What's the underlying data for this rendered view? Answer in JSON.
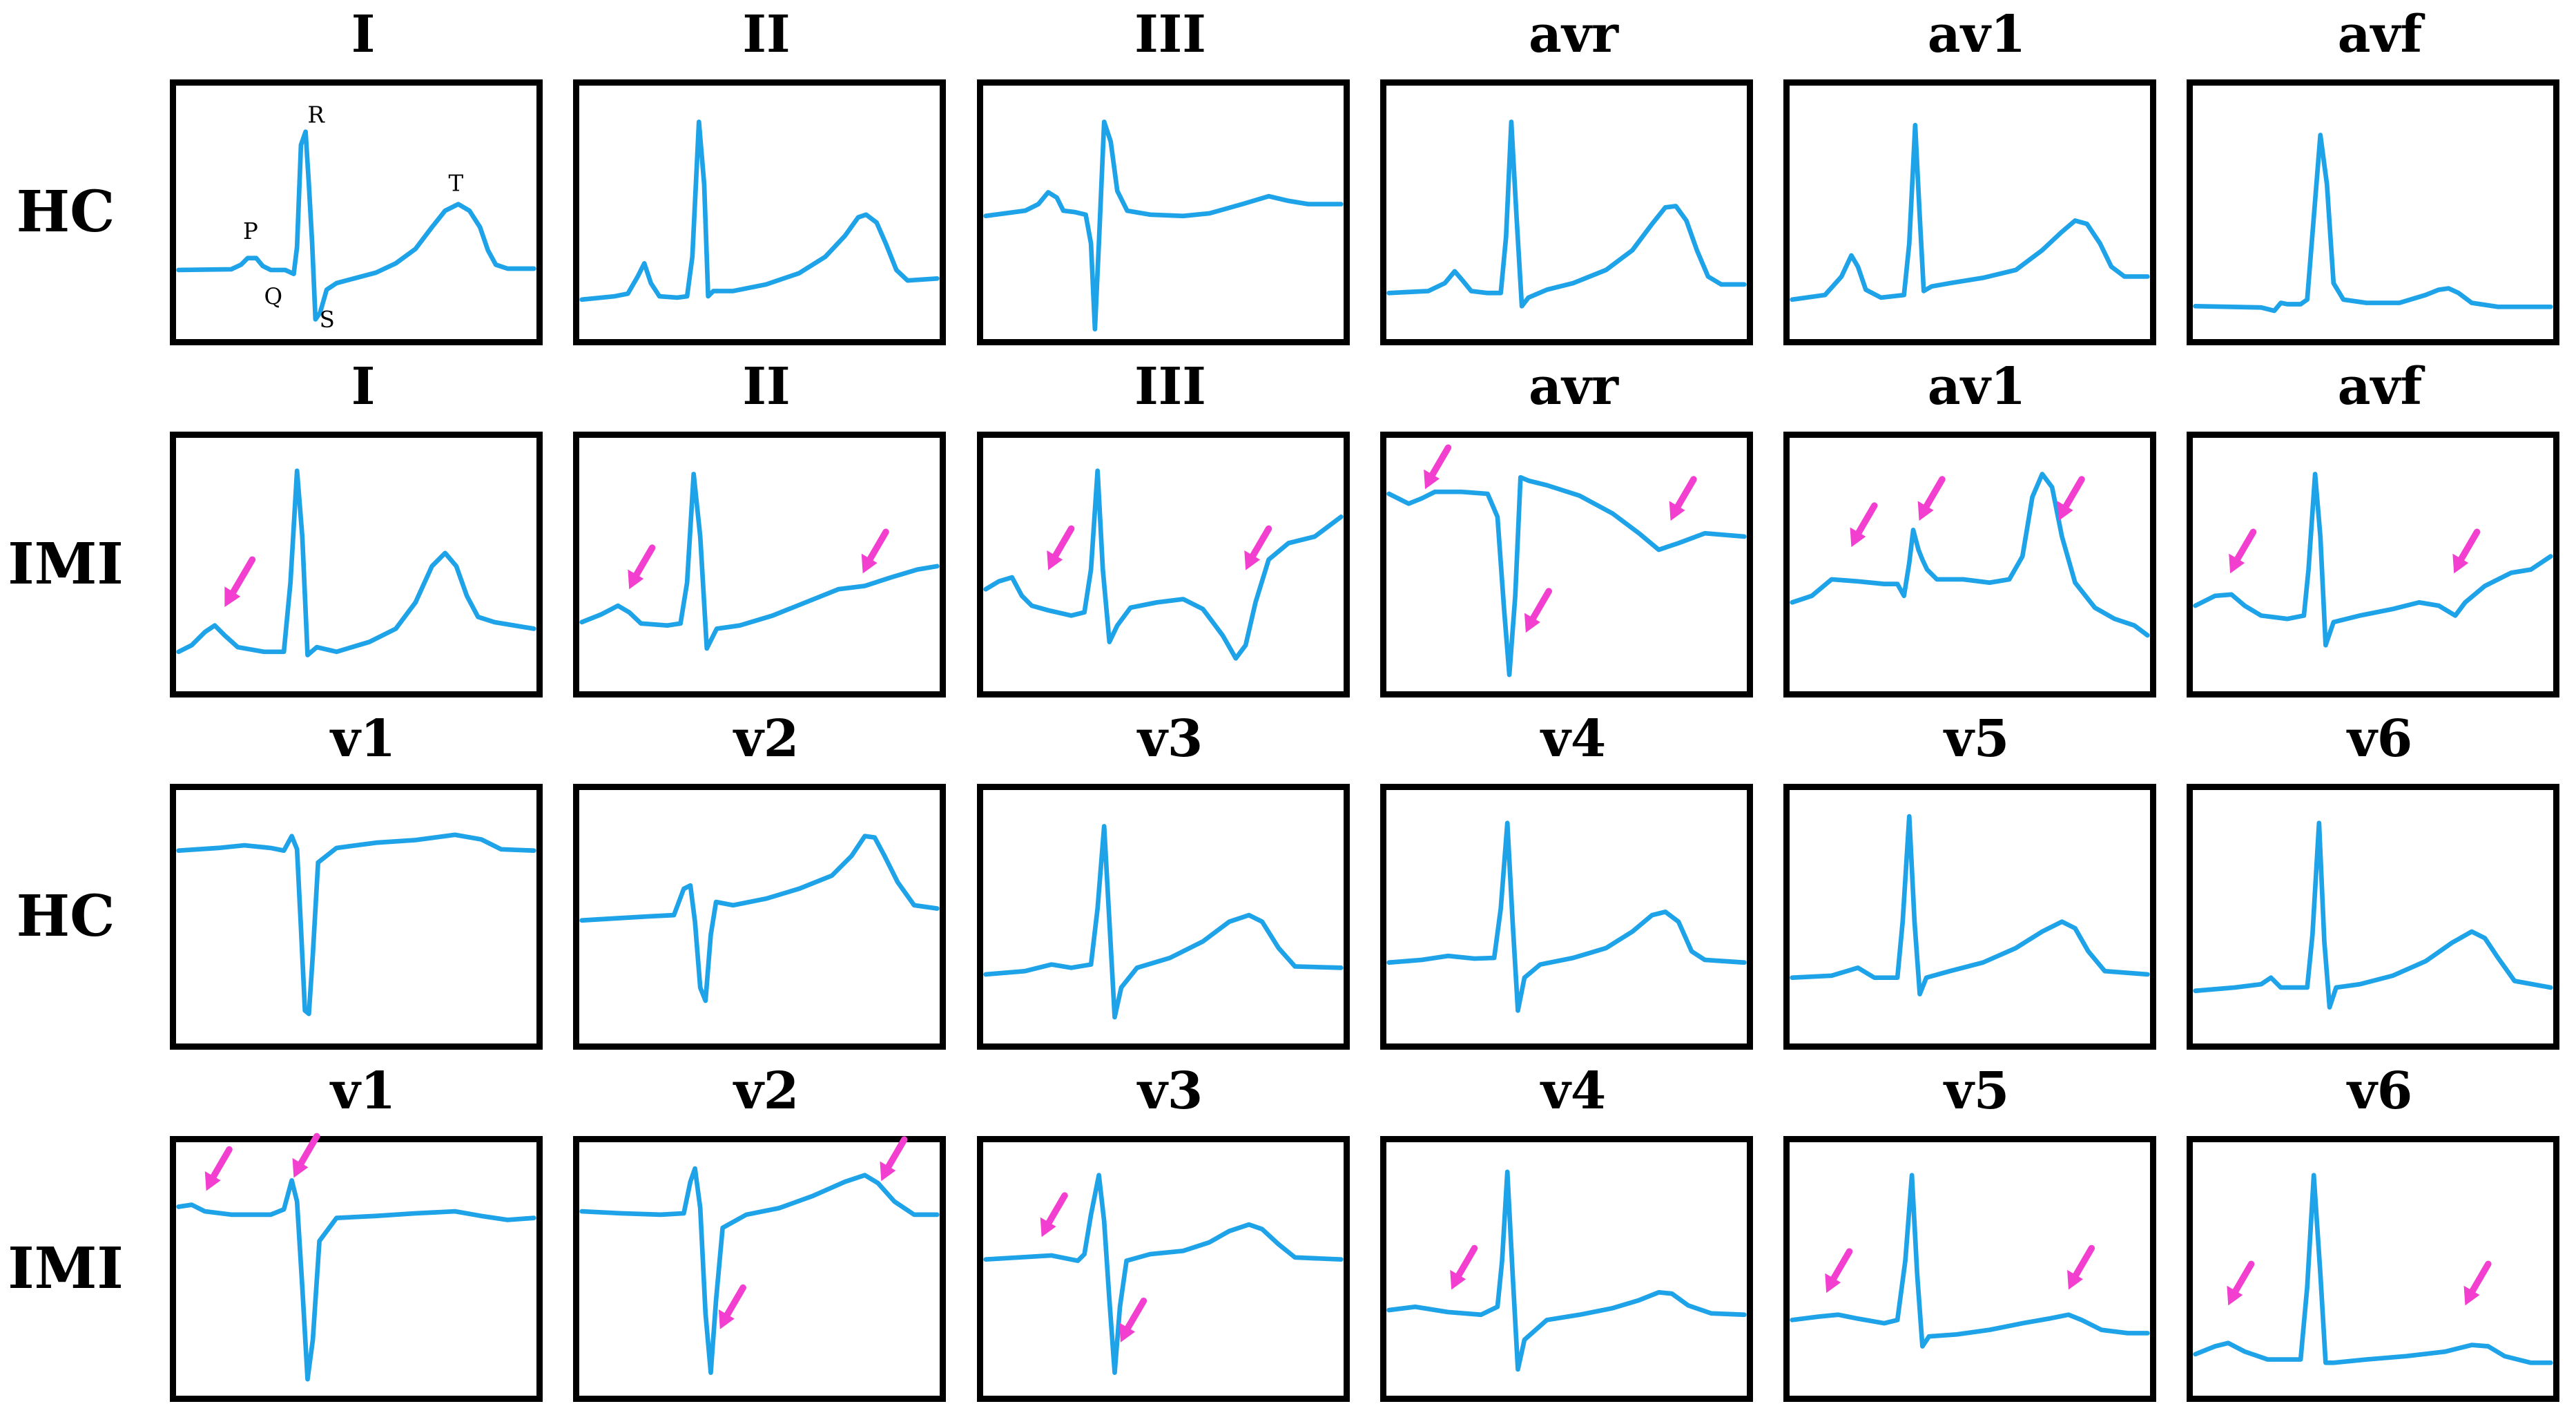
{
  "colors": {
    "wave": "#1ea3e8",
    "arrow": "#f23fd0",
    "frame": "#000000"
  },
  "row_labels": [
    "HC",
    "IMI",
    "HC",
    "IMI"
  ],
  "lead_rows": [
    [
      "I",
      "II",
      "III",
      "avr",
      "av1",
      "avf"
    ],
    [
      "I",
      "II",
      "III",
      "avr",
      "av1",
      "avf"
    ],
    [
      "v1",
      "v2",
      "v3",
      "v4",
      "v5",
      "v6"
    ],
    [
      "v1",
      "v2",
      "v3",
      "v4",
      "v5",
      "v6"
    ]
  ],
  "wave_labels": {
    "P": "P",
    "Q": "Q",
    "R": "R",
    "S": "S",
    "T": "T"
  }
}
